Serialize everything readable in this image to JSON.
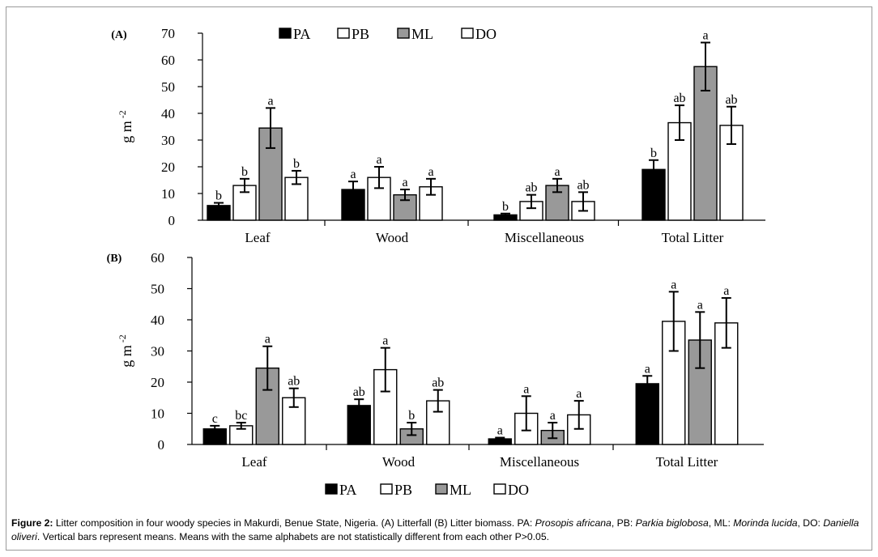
{
  "caption": {
    "label": "Figure 2:",
    "text_1": " Litter composition in four woody species in Makurdi, Benue State, Nigeria. (A) Litterfall (B) Litter biomass. PA: ",
    "pa_name": "Prosopis africana",
    "text_2": ", PB: ",
    "pb_name": "Parkia biglobosa",
    "text_3": ", ML: ",
    "ml_name": "Morinda lucida",
    "text_4": ", DO: ",
    "do_name": "Daniella oliveri",
    "text_5": ". Vertical bars represent means. Means with the same alphabets are not statistically different from each other P>0.05."
  },
  "colors": {
    "PA": "#000000",
    "PB": "#ffffff",
    "ML": "#999999",
    "DO": "#ffffff"
  },
  "chart_data": [
    {
      "type": "bar",
      "panel_label": "(A)",
      "ylabel": "g m-2",
      "ylabel_base": "g m",
      "ylabel_sup": "-2",
      "ylim": [
        0,
        70
      ],
      "yticks": [
        0,
        10,
        20,
        30,
        40,
        50,
        60,
        70
      ],
      "legend_position": "top",
      "categories": [
        "Leaf",
        "Wood",
        "Miscellaneous",
        "Total Litter"
      ],
      "series": [
        {
          "name": "PA",
          "values": [
            5.5,
            11.5,
            2,
            19
          ],
          "errors": [
            1,
            3,
            0.5,
            3.5
          ],
          "letters": [
            "b",
            "a",
            "b",
            "b"
          ]
        },
        {
          "name": "PB",
          "values": [
            13,
            16,
            7,
            36.5
          ],
          "errors": [
            2.5,
            4,
            2.5,
            6.5
          ],
          "letters": [
            "b",
            "a",
            "ab",
            "ab"
          ]
        },
        {
          "name": "ML",
          "values": [
            34.5,
            9.5,
            13,
            57.5
          ],
          "errors": [
            7.5,
            2,
            2.5,
            9
          ],
          "letters": [
            "a",
            "a",
            "a",
            "a"
          ]
        },
        {
          "name": "DO",
          "values": [
            16,
            12.5,
            7,
            35.5
          ],
          "errors": [
            2.5,
            3,
            3.5,
            7
          ],
          "letters": [
            "b",
            "a",
            "ab",
            "ab"
          ]
        }
      ]
    },
    {
      "type": "bar",
      "panel_label": "(B)",
      "ylabel": "g m -2",
      "ylabel_base": "g m",
      "ylabel_sup": "-2",
      "ylim": [
        0,
        60
      ],
      "yticks": [
        0,
        10,
        20,
        30,
        40,
        50,
        60
      ],
      "legend_position": "bottom",
      "categories": [
        "Leaf",
        "Wood",
        "Miscellaneous",
        "Total Litter"
      ],
      "series": [
        {
          "name": "PA",
          "values": [
            5,
            12.5,
            1.8,
            19.5
          ],
          "errors": [
            1,
            2,
            0.4,
            2.5
          ],
          "letters": [
            "c",
            "ab",
            "a",
            "a"
          ]
        },
        {
          "name": "PB",
          "values": [
            6,
            24,
            10,
            39.5
          ],
          "errors": [
            1,
            7,
            5.5,
            9.5
          ],
          "letters": [
            "bc",
            "a",
            "a",
            "a"
          ]
        },
        {
          "name": "ML",
          "values": [
            24.5,
            5,
            4.5,
            33.5
          ],
          "errors": [
            7,
            2,
            2.5,
            9
          ],
          "letters": [
            "a",
            "b",
            "a",
            "a"
          ]
        },
        {
          "name": "DO",
          "values": [
            15,
            14,
            9.5,
            39
          ],
          "errors": [
            3,
            3.5,
            4.5,
            8
          ],
          "letters": [
            "ab",
            "ab",
            "a",
            "a"
          ]
        }
      ]
    }
  ]
}
